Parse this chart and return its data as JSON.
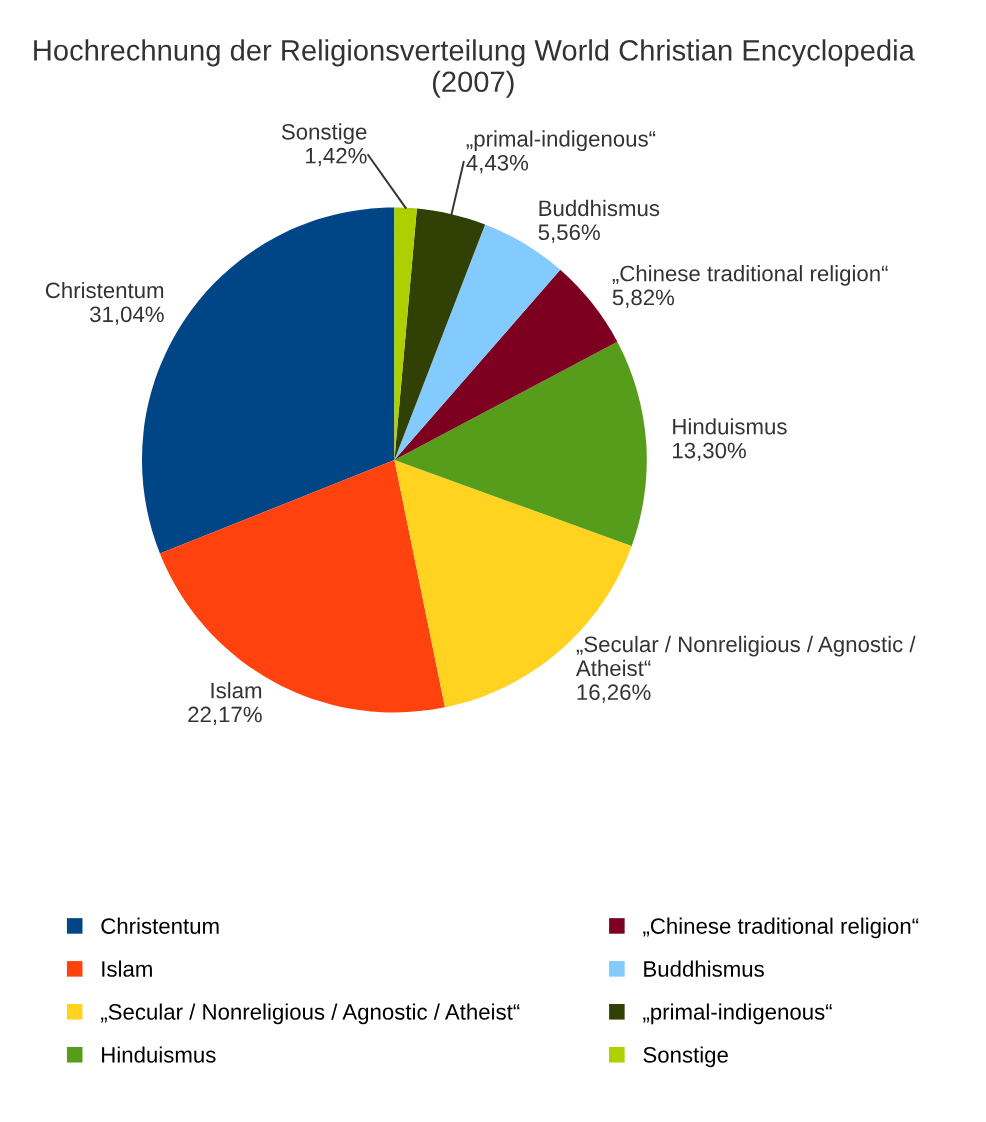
{
  "chart_data": {
    "type": "pie",
    "title": "Hochrechnung der Religionsverteilung World Christian Encyclopedia\n(2007)",
    "categories": [
      "Christentum",
      "Islam",
      "„Secular / Nonreligious / Agnostic / Atheist“",
      "Hinduismus",
      "„Chinese traditional religion“",
      "Buddhismus",
      "„primal-indigenous“",
      "Sonstige"
    ],
    "values": [
      31.04,
      22.17,
      16.26,
      13.3,
      5.82,
      5.56,
      4.43,
      1.42
    ],
    "value_labels": [
      "31,04%",
      "22,17%",
      "16,26%",
      "13,30%",
      "5,82%",
      "5,56%",
      "4,43%",
      "1,42%"
    ],
    "colors": [
      "#004586",
      "#ff420e",
      "#ffd320",
      "#579d1c",
      "#7e0021",
      "#83caff",
      "#314004",
      "#aecf00"
    ],
    "legend": "bottom"
  }
}
